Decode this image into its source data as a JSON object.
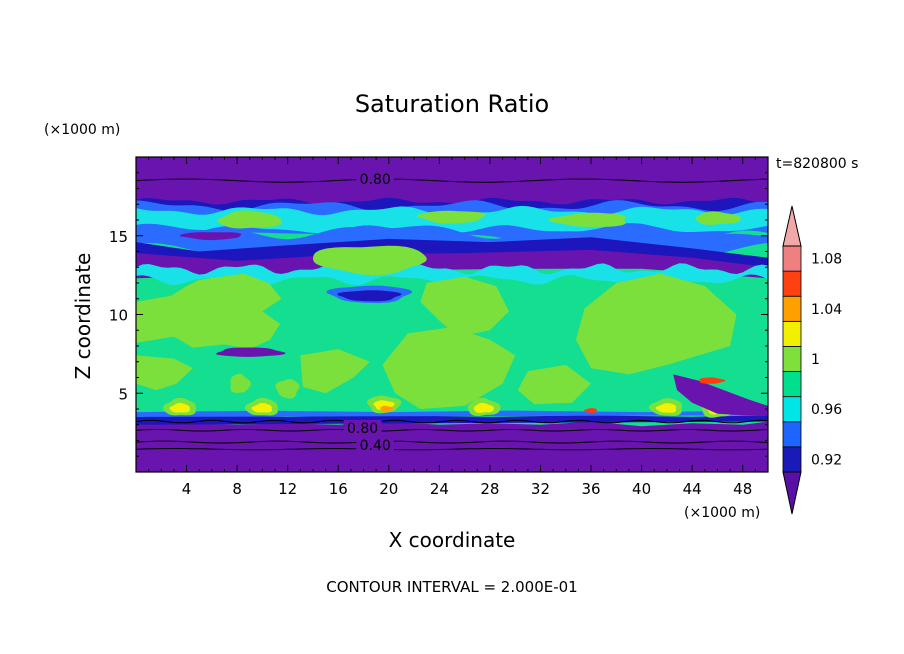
{
  "chart_data": {
    "type": "heatmap",
    "title": "Saturation Ratio",
    "time_label": "t=820800 s",
    "xlabel": "X coordinate",
    "ylabel": "Z coordinate",
    "x_unit": "(×1000 m)",
    "y_unit": "(×1000 m)",
    "xlim": [
      0,
      50
    ],
    "ylim": [
      0,
      20
    ],
    "x_ticks": [
      "4",
      "8",
      "12",
      "16",
      "20",
      "24",
      "28",
      "32",
      "36",
      "40",
      "44",
      "48"
    ],
    "y_ticks": [
      "5",
      "10",
      "15"
    ],
    "footer": "CONTOUR INTERVAL = 2.000E-01",
    "contour_labels": [
      {
        "text": "0.80",
        "x": 17.5,
        "z": 18.6
      },
      {
        "text": "0.80",
        "x": 16.5,
        "z": 2.8
      },
      {
        "text": "0.40",
        "x": 17.5,
        "z": 1.7
      }
    ],
    "colorbar": {
      "labels": [
        "1.08",
        "1.04",
        "1",
        "0.96",
        "0.92"
      ],
      "levels": [
        0.92,
        0.94,
        0.96,
        0.98,
        1.0,
        1.02,
        1.04,
        1.06,
        1.08,
        1.1
      ],
      "colors": [
        "#5a0fa6",
        "#1a1ab8",
        "#1e64ff",
        "#00e5e5",
        "#00e08c",
        "#7fe03c",
        "#f0f000",
        "#ffa000",
        "#ff4010",
        "#f08080",
        "#f0a8a8"
      ]
    },
    "colors": {
      "purple": "#6a14b0",
      "darkblue": "#1c16bc",
      "blue": "#2a6cff",
      "cyan": "#18e2e8",
      "green": "#14de90",
      "lime": "#7ce03c",
      "yellow": "#f2f200",
      "orange": "#ffa000",
      "red": "#ff3c10"
    }
  }
}
